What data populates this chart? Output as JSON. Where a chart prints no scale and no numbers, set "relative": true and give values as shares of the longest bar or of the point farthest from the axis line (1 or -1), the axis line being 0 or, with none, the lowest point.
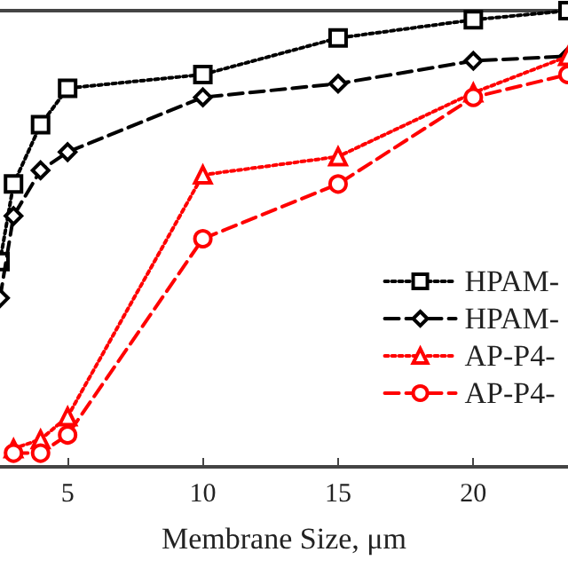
{
  "chart_data": {
    "type": "line",
    "relative": true,
    "xlabel": "Membrane Size, μm",
    "xlim": [
      2.5,
      23.5
    ],
    "xticks": [
      5,
      10,
      15,
      20
    ],
    "grid": false,
    "legend": "right",
    "series": [
      {
        "name": "HPAM-",
        "color": "#000000",
        "marker": "square",
        "line_style": "dotted",
        "x": [
          2.5,
          3,
          4,
          5,
          10,
          15,
          20,
          23.5
        ],
        "values": [
          0.45,
          0.62,
          0.75,
          0.83,
          0.86,
          0.94,
          0.98,
          1.0
        ]
      },
      {
        "name": "HPAM-",
        "color": "#000000",
        "marker": "diamond",
        "line_style": "dashed",
        "x": [
          2.5,
          3,
          4,
          5,
          10,
          15,
          20,
          23.5
        ],
        "values": [
          0.37,
          0.55,
          0.65,
          0.69,
          0.81,
          0.84,
          0.89,
          0.9
        ]
      },
      {
        "name": "AP-P4-",
        "color": "#ff0000",
        "marker": "triangle",
        "line_style": "dotted",
        "x": [
          3,
          4,
          5,
          10,
          15,
          20,
          23.5
        ],
        "values": [
          0.04,
          0.06,
          0.11,
          0.64,
          0.68,
          0.82,
          0.9
        ]
      },
      {
        "name": "AP-P4-",
        "color": "#ff0000",
        "marker": "circle",
        "line_style": "dashed",
        "x": [
          3,
          4,
          5,
          10,
          15,
          20,
          23.5
        ],
        "values": [
          0.03,
          0.03,
          0.07,
          0.5,
          0.62,
          0.81,
          0.86
        ]
      }
    ]
  }
}
